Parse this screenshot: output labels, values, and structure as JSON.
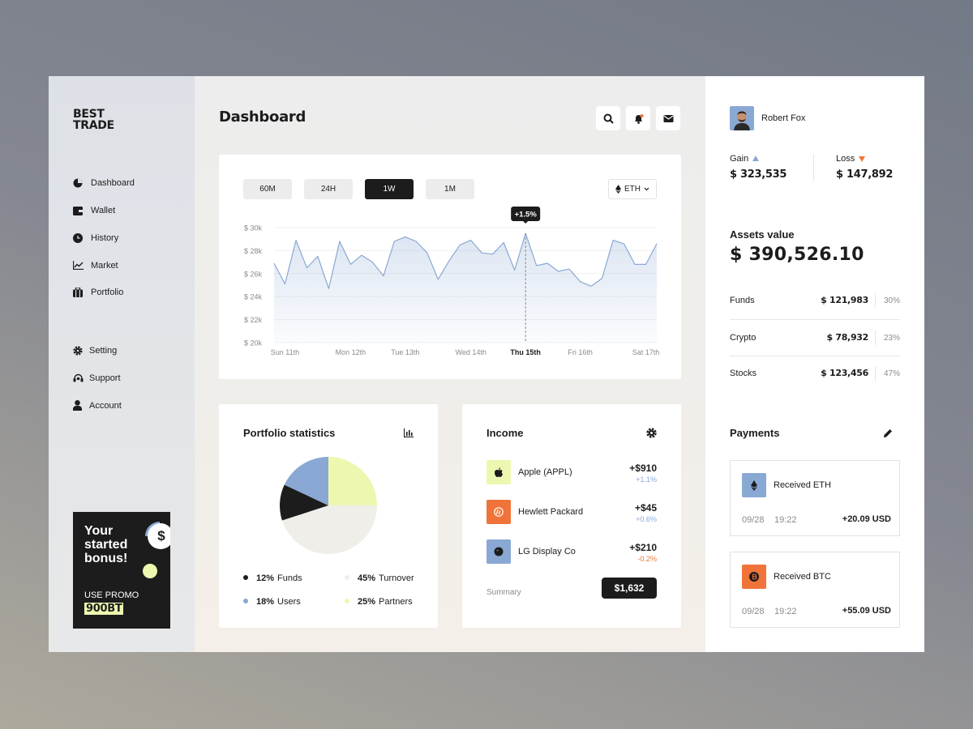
{
  "sidebar": {
    "brand": [
      "BEST",
      "TRADE"
    ],
    "nav": [
      "Dashboard",
      "Wallet",
      "History",
      "Market",
      "Portfolio"
    ],
    "nav_secondary": [
      "Setting",
      "Support",
      "Account"
    ],
    "promo": {
      "title": [
        "Your",
        "started",
        "bonus!"
      ],
      "badge": "$",
      "label": "USE PROMO",
      "code": "900BT"
    }
  },
  "header": {
    "title": "Dashboard"
  },
  "chart_controls": {
    "ranges": [
      "60M",
      "24H",
      "1W",
      "1M"
    ],
    "active": "1W",
    "currency": "ETH"
  },
  "chart_data": [
    {
      "type": "line",
      "categories": [
        null,
        "Sun 11th",
        null,
        null,
        null,
        null,
        null,
        "Mon 12th",
        null,
        null,
        null,
        null,
        "Tue 13th",
        null,
        null,
        null,
        null,
        null,
        "Wed 14th",
        null,
        null,
        null,
        null,
        "Thu 15th",
        null,
        null,
        null,
        null,
        "Fri 16th",
        null,
        null,
        null,
        null,
        null,
        "Sat 17th",
        null
      ],
      "values": [
        26900,
        25100,
        28900,
        26500,
        27500,
        24700,
        28800,
        26800,
        27600,
        27000,
        25800,
        28800,
        29200,
        28800,
        27800,
        25500,
        27100,
        28500,
        28900,
        27800,
        27700,
        28700,
        26300,
        29500,
        26700,
        26900,
        26200,
        26400,
        25300,
        24900,
        25600,
        28900,
        28600,
        26800,
        26800,
        28600
      ],
      "color": "#8aa8d4",
      "ylim": [
        20000,
        30000
      ],
      "yticks": [
        {
          "value": 20000,
          "label": "$ 20k"
        },
        {
          "value": 22000,
          "label": "$ 22k"
        },
        {
          "value": 24000,
          "label": "$ 24k"
        },
        {
          "value": 26000,
          "label": "$ 26k"
        },
        {
          "value": 28000,
          "label": "$ 28k"
        },
        {
          "value": 30000,
          "label": "$ 30k"
        }
      ],
      "grid": true,
      "annotation": {
        "text": "+1.5%",
        "category": "Thu 15th"
      }
    },
    {
      "type": "pie",
      "title": "Portfolio statistics",
      "categories": [
        "Funds",
        "Turnover",
        "Users",
        "Partners"
      ],
      "values": [
        12,
        45,
        18,
        25
      ],
      "value_labels": [
        "12%",
        "45%",
        "18%",
        "25%"
      ],
      "colors": [
        "#1c1c1c",
        "#efeee9",
        "#8aa8d4",
        "#eef7b0"
      ]
    }
  ],
  "income": {
    "title": "Income",
    "items": [
      {
        "name": "Apple (APPL)",
        "amount": "+$910",
        "change": "+1.1%"
      },
      {
        "name": "Hewlett Packard",
        "amount": "+$45",
        "change": "+0.6%"
      },
      {
        "name": "LG Display Co",
        "amount": "+$210",
        "change": "-0.2%"
      }
    ],
    "summary_label": "Summary",
    "summary": "$1,632"
  },
  "profile": {
    "name": "Robert Fox",
    "gain_label": "Gain",
    "gain": "$ 323,535",
    "loss_label": "Loss",
    "loss": "$ 147,892"
  },
  "assets": {
    "title": "Assets value",
    "total": "$ 390,526.10",
    "rows": [
      {
        "name": "Funds",
        "amount": "$ 121,983",
        "share": "30%"
      },
      {
        "name": "Crypto",
        "amount": "$ 78,932",
        "share": "23%"
      },
      {
        "name": "Stocks",
        "amount": "$ 123,456",
        "share": "47%"
      }
    ]
  },
  "payments": {
    "title": "Payments",
    "items": [
      {
        "title": "Received ETH",
        "date": "09/28",
        "time": "19:22",
        "amount": "+20.09 USD"
      },
      {
        "title": "Received BTC",
        "date": "09/28",
        "time": "19:22",
        "amount": "+55.09 USD"
      }
    ]
  }
}
